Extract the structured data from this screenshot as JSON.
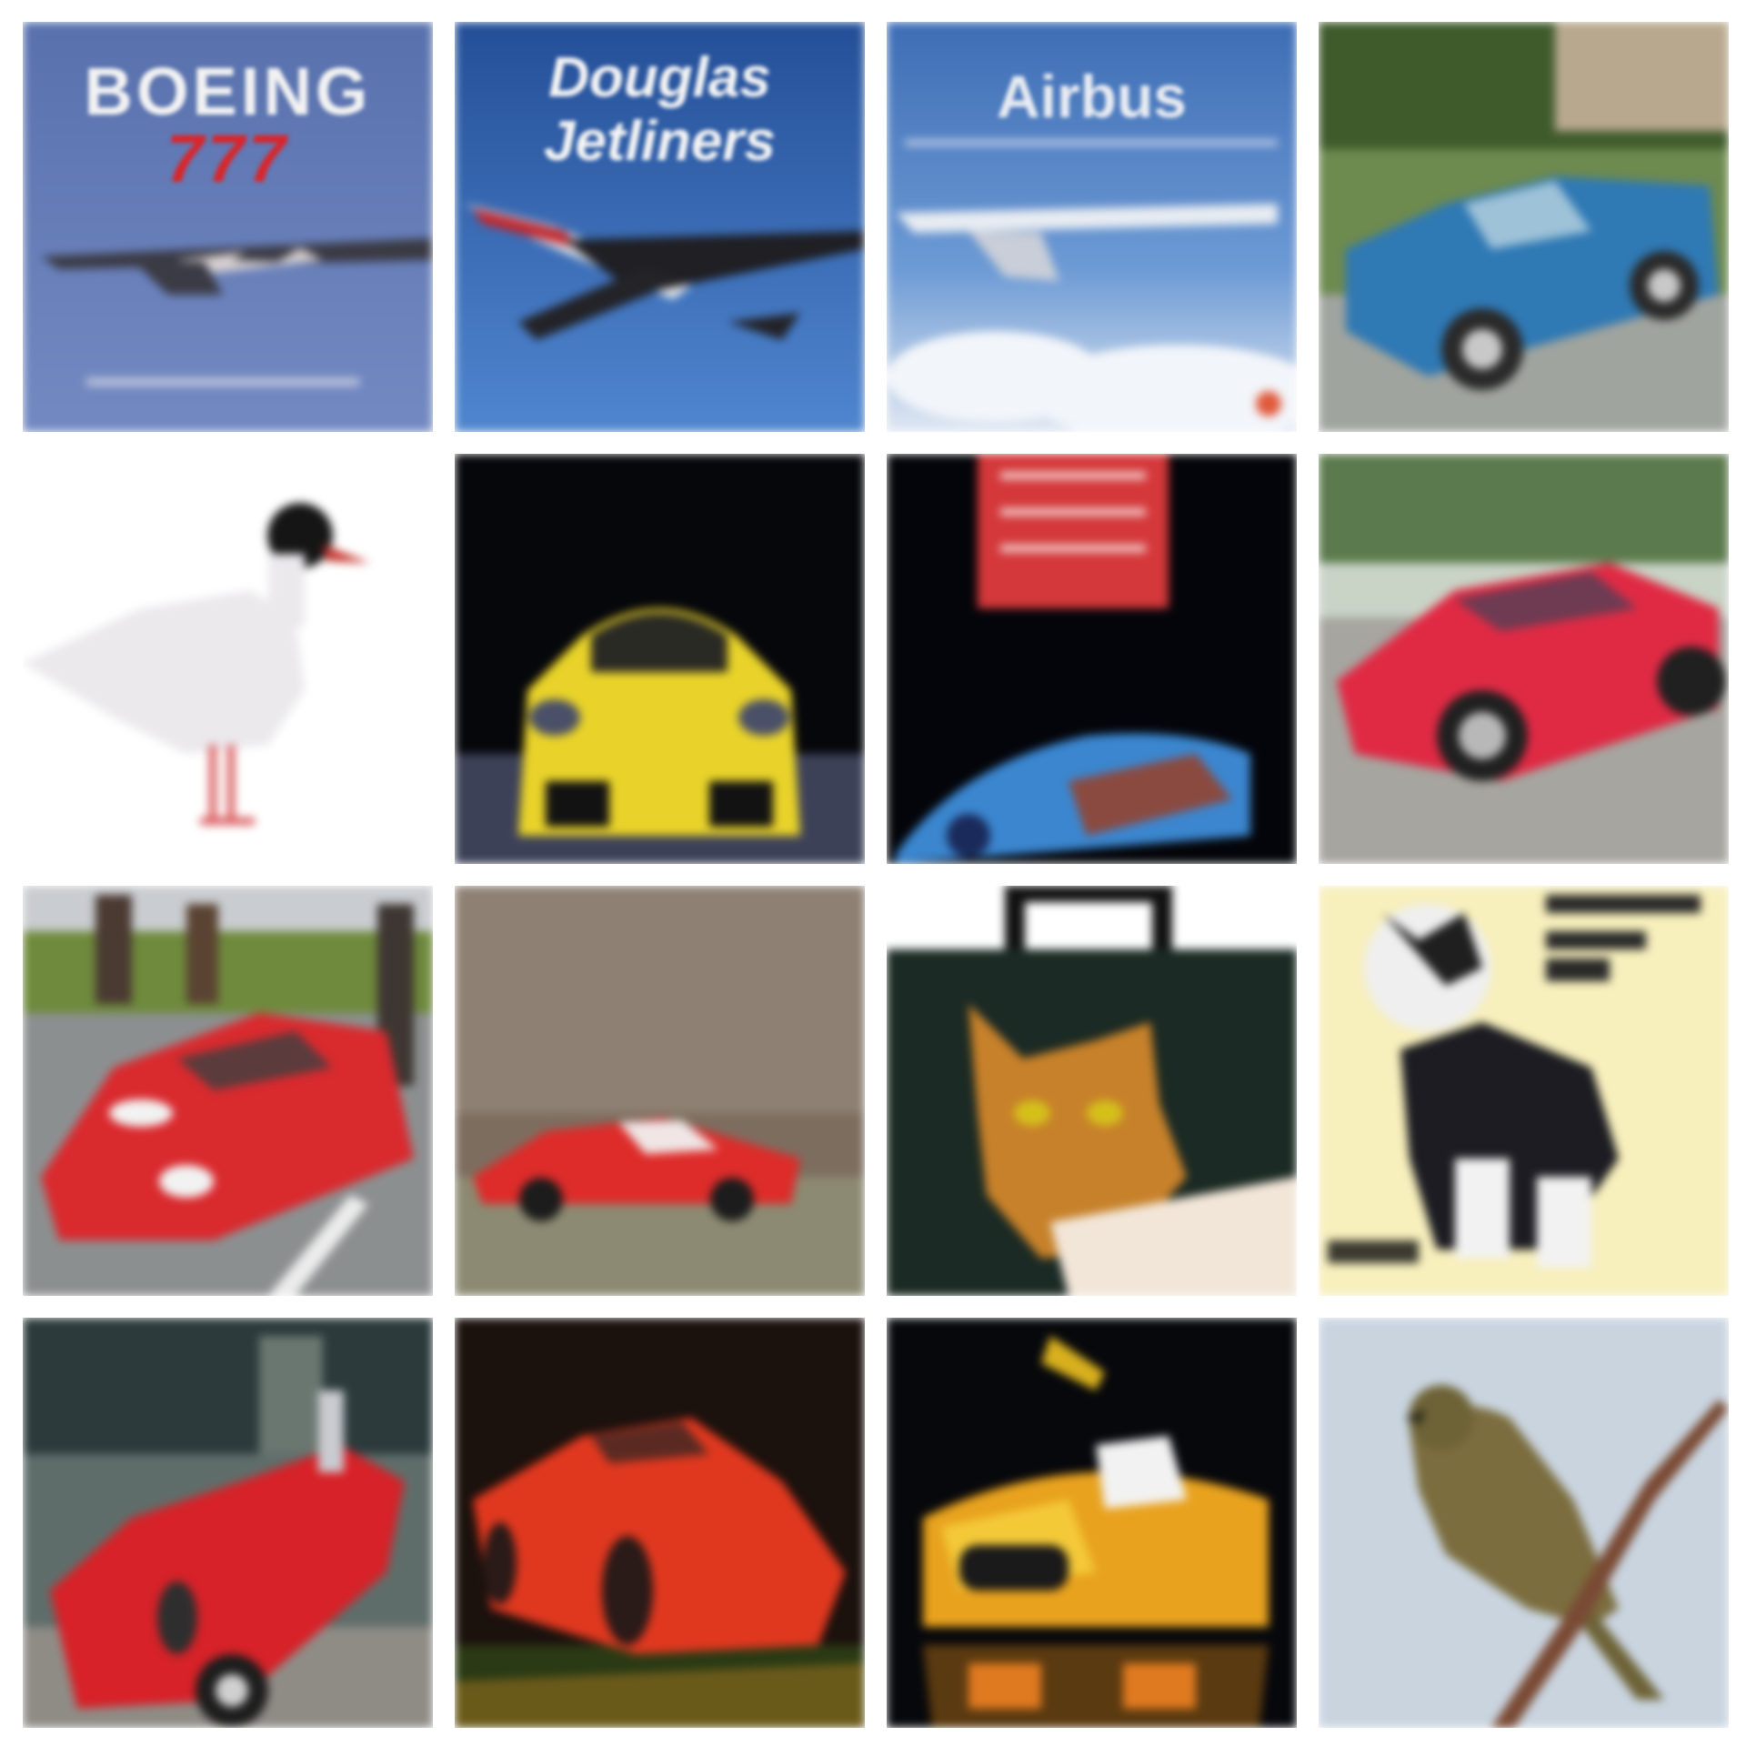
{
  "tiles": [
    {
      "id": "t1",
      "subject": "airplane",
      "text": {
        "title": "BOEING",
        "subtitle": "777"
      }
    },
    {
      "id": "t2",
      "subject": "airplane",
      "text": {
        "title": "Douglas",
        "subtitle": "Jetliners"
      }
    },
    {
      "id": "t3",
      "subject": "airplane",
      "text": {
        "title": "Airbus"
      }
    },
    {
      "id": "t4",
      "subject": "car"
    },
    {
      "id": "t5",
      "subject": "bird"
    },
    {
      "id": "t6",
      "subject": "car"
    },
    {
      "id": "t7",
      "subject": "car"
    },
    {
      "id": "t8",
      "subject": "car"
    },
    {
      "id": "t9",
      "subject": "car"
    },
    {
      "id": "t10",
      "subject": "car"
    },
    {
      "id": "t11",
      "subject": "cat"
    },
    {
      "id": "t12",
      "subject": "cat"
    },
    {
      "id": "t13",
      "subject": "car"
    },
    {
      "id": "t14",
      "subject": "car"
    },
    {
      "id": "t15",
      "subject": "car"
    },
    {
      "id": "t16",
      "subject": "bird"
    }
  ],
  "colors": {
    "background": "#ffffff",
    "sky_blue": "#5f79b3",
    "car_red": "#d92a2e",
    "car_yellow": "#e8d02a",
    "car_blue": "#2f79b4"
  }
}
